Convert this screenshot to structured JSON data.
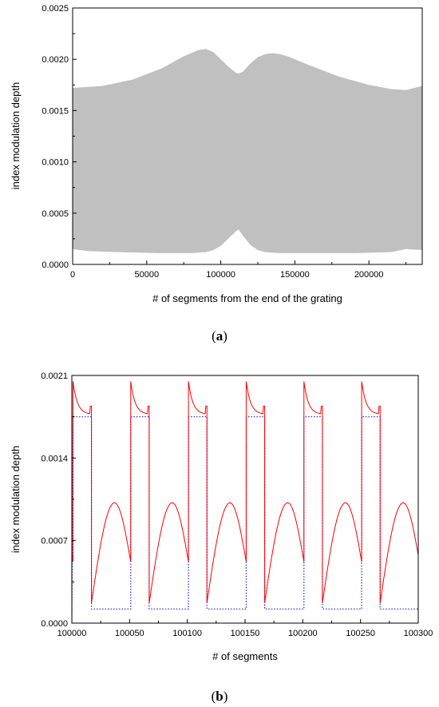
{
  "chart_data": [
    {
      "type": "area",
      "panel_label": "a",
      "xlabel": "# of segments from the end of the grating",
      "ylabel": "index modulation depth",
      "xlim": [
        0,
        236000
      ],
      "ylim": [
        0,
        0.0025
      ],
      "xticks": [
        0,
        50000,
        100000,
        150000,
        200000
      ],
      "xtick_labels": [
        "0",
        "50000",
        "100000",
        "150000",
        "200000"
      ],
      "yticks": [
        0,
        0.0005,
        0.001,
        0.0015,
        0.002,
        0.0025
      ],
      "ytick_labels": [
        "0.0000",
        "0.0005",
        "0.0010",
        "0.0015",
        "0.0020",
        "0.0025"
      ],
      "fill_color": "#c0c0c0",
      "upper_envelope": {
        "x": [
          0,
          20000,
          40000,
          60000,
          75000,
          85000,
          90000,
          95000,
          100000,
          105000,
          110000,
          112000,
          115000,
          120000,
          125000,
          130000,
          135000,
          140000,
          145000,
          150000,
          160000,
          180000,
          200000,
          215000,
          225000,
          236000
        ],
        "y": [
          0.00172,
          0.00174,
          0.0018,
          0.00191,
          0.00203,
          0.00209,
          0.0021,
          0.00207,
          0.002,
          0.00193,
          0.00187,
          0.00186,
          0.00188,
          0.00196,
          0.00202,
          0.00205,
          0.00206,
          0.00205,
          0.00203,
          0.002,
          0.00194,
          0.00183,
          0.00175,
          0.00171,
          0.0017,
          0.00174
        ]
      },
      "lower_envelope": {
        "x": [
          0,
          10000,
          30000,
          60000,
          80000,
          90000,
          95000,
          100000,
          105000,
          110000,
          112000,
          115000,
          120000,
          125000,
          130000,
          140000,
          160000,
          190000,
          215000,
          225000,
          236000
        ],
        "y": [
          0.00015,
          0.00013,
          0.00012,
          0.00011,
          0.00011,
          0.00012,
          0.00014,
          0.00018,
          0.00025,
          0.00032,
          0.00034,
          0.00028,
          0.00019,
          0.00014,
          0.00012,
          0.00011,
          0.00011,
          0.00011,
          0.00012,
          0.00015,
          0.00014
        ]
      }
    },
    {
      "type": "line",
      "panel_label": "b",
      "xlabel": "# of segments",
      "ylabel": "index modulation depth",
      "xlim": [
        100000,
        100300
      ],
      "ylim": [
        0,
        0.0021
      ],
      "xticks": [
        100000,
        100050,
        100100,
        100150,
        100200,
        100250,
        100300
      ],
      "xtick_labels": [
        "100000",
        "100050",
        "100100",
        "100150",
        "100200",
        "100250",
        "100300"
      ],
      "yticks": [
        0,
        0.0007,
        0.0014,
        0.0021
      ],
      "ytick_labels": [
        "0.0000",
        "0.0007",
        "0.0014",
        "0.0021"
      ],
      "period": 50,
      "phase_offset": 1,
      "high_segment_length": 16,
      "high_curve": {
        "start": 0.00205,
        "end": 0.00177,
        "tail": 0.00184
      },
      "low_curve": {
        "start": 0.00017,
        "peak": 0.00102,
        "peak_offset": 20,
        "end": 0.00052
      },
      "target_levels": {
        "high": 0.00175,
        "low": 0.00012
      },
      "colors": {
        "actual": "#ff0000",
        "target": "#1a1aff"
      }
    }
  ],
  "captions": {
    "a": "a",
    "b": "b"
  }
}
